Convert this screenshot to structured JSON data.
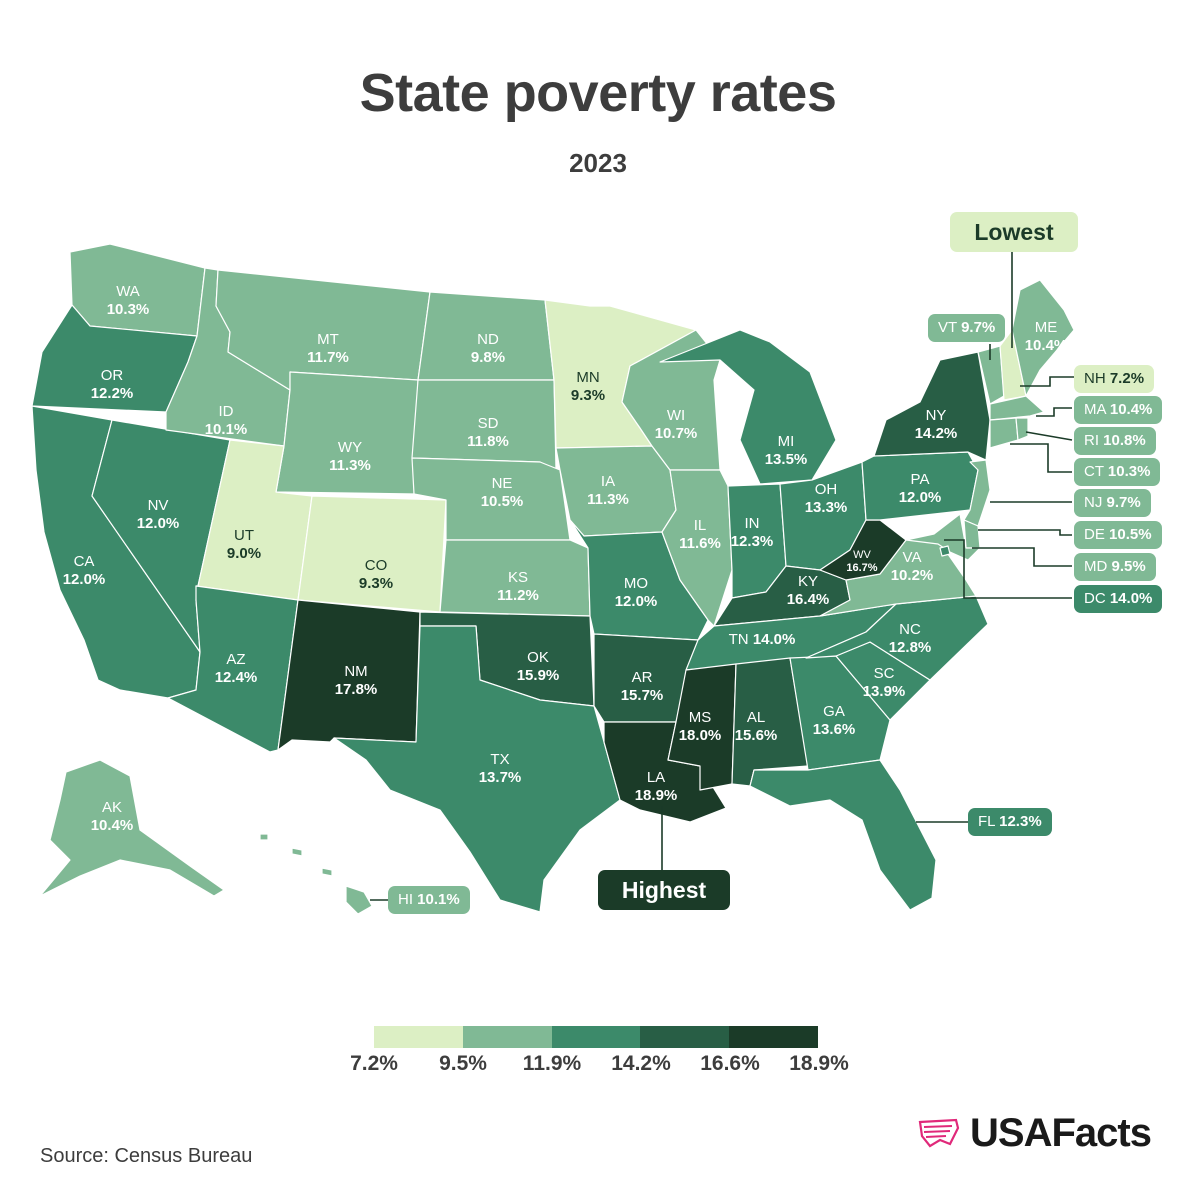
{
  "title": "State poverty rates",
  "subtitle": "2023",
  "colors": {
    "bin1": "#dcefc4",
    "bin2": "#80b995",
    "bin3": "#3c8a6a",
    "bin4": "#285e45",
    "bin5": "#1b3b28"
  },
  "legend": {
    "ticks": [
      "7.2%",
      "9.5%",
      "11.9%",
      "14.2%",
      "16.6%",
      "18.9%"
    ]
  },
  "states": {
    "WA": {
      "abbr": "WA",
      "value": "10.3%"
    },
    "OR": {
      "abbr": "OR",
      "value": "12.2%"
    },
    "CA": {
      "abbr": "CA",
      "value": "12.0%"
    },
    "NV": {
      "abbr": "NV",
      "value": "12.0%"
    },
    "ID": {
      "abbr": "ID",
      "value": "10.1%"
    },
    "MT": {
      "abbr": "MT",
      "value": "11.7%"
    },
    "WY": {
      "abbr": "WY",
      "value": "11.3%"
    },
    "UT": {
      "abbr": "UT",
      "value": "9.0%"
    },
    "CO": {
      "abbr": "CO",
      "value": "9.3%"
    },
    "AZ": {
      "abbr": "AZ",
      "value": "12.4%"
    },
    "NM": {
      "abbr": "NM",
      "value": "17.8%"
    },
    "ND": {
      "abbr": "ND",
      "value": "9.8%"
    },
    "SD": {
      "abbr": "SD",
      "value": "11.8%"
    },
    "NE": {
      "abbr": "NE",
      "value": "10.5%"
    },
    "KS": {
      "abbr": "KS",
      "value": "11.2%"
    },
    "OK": {
      "abbr": "OK",
      "value": "15.9%"
    },
    "TX": {
      "abbr": "TX",
      "value": "13.7%"
    },
    "MN": {
      "abbr": "MN",
      "value": "9.3%"
    },
    "IA": {
      "abbr": "IA",
      "value": "11.3%"
    },
    "MO": {
      "abbr": "MO",
      "value": "12.0%"
    },
    "AR": {
      "abbr": "AR",
      "value": "15.7%"
    },
    "LA": {
      "abbr": "LA",
      "value": "18.9%"
    },
    "WI": {
      "abbr": "WI",
      "value": "10.7%"
    },
    "IL": {
      "abbr": "IL",
      "value": "11.6%"
    },
    "MI": {
      "abbr": "MI",
      "value": "13.5%"
    },
    "IN": {
      "abbr": "IN",
      "value": "12.3%"
    },
    "OH": {
      "abbr": "OH",
      "value": "13.3%"
    },
    "KY": {
      "abbr": "KY",
      "value": "16.4%"
    },
    "TN": {
      "abbr": "TN",
      "value": "14.0%"
    },
    "MS": {
      "abbr": "MS",
      "value": "18.0%"
    },
    "AL": {
      "abbr": "AL",
      "value": "15.6%"
    },
    "GA": {
      "abbr": "GA",
      "value": "13.6%"
    },
    "FL": {
      "abbr": "FL",
      "value": "12.3%"
    },
    "SC": {
      "abbr": "SC",
      "value": "13.9%"
    },
    "NC": {
      "abbr": "NC",
      "value": "12.8%"
    },
    "VA": {
      "abbr": "VA",
      "value": "10.2%"
    },
    "WV": {
      "abbr": "WV",
      "value": "16.7%"
    },
    "PA": {
      "abbr": "PA",
      "value": "12.0%"
    },
    "NY": {
      "abbr": "NY",
      "value": "14.2%"
    },
    "ME": {
      "abbr": "ME",
      "value": "10.4%"
    },
    "VT": {
      "abbr": "VT",
      "value": "9.7%"
    },
    "NH": {
      "abbr": "NH",
      "value": "7.2%"
    },
    "MA": {
      "abbr": "MA",
      "value": "10.4%"
    },
    "RI": {
      "abbr": "RI",
      "value": "10.8%"
    },
    "CT": {
      "abbr": "CT",
      "value": "10.3%"
    },
    "NJ": {
      "abbr": "NJ",
      "value": "9.7%"
    },
    "DE": {
      "abbr": "DE",
      "value": "10.5%"
    },
    "MD": {
      "abbr": "MD",
      "value": "9.5%"
    },
    "DC": {
      "abbr": "DC",
      "value": "14.0%"
    },
    "AK": {
      "abbr": "AK",
      "value": "10.4%"
    },
    "HI": {
      "abbr": "HI",
      "value": "10.1%"
    }
  },
  "annotations": {
    "lowest": "Lowest",
    "highest": "Highest"
  },
  "source": "Source: Census Bureau",
  "logo": {
    "text": "USAFacts",
    "icon": "usa-flag-map-icon"
  }
}
